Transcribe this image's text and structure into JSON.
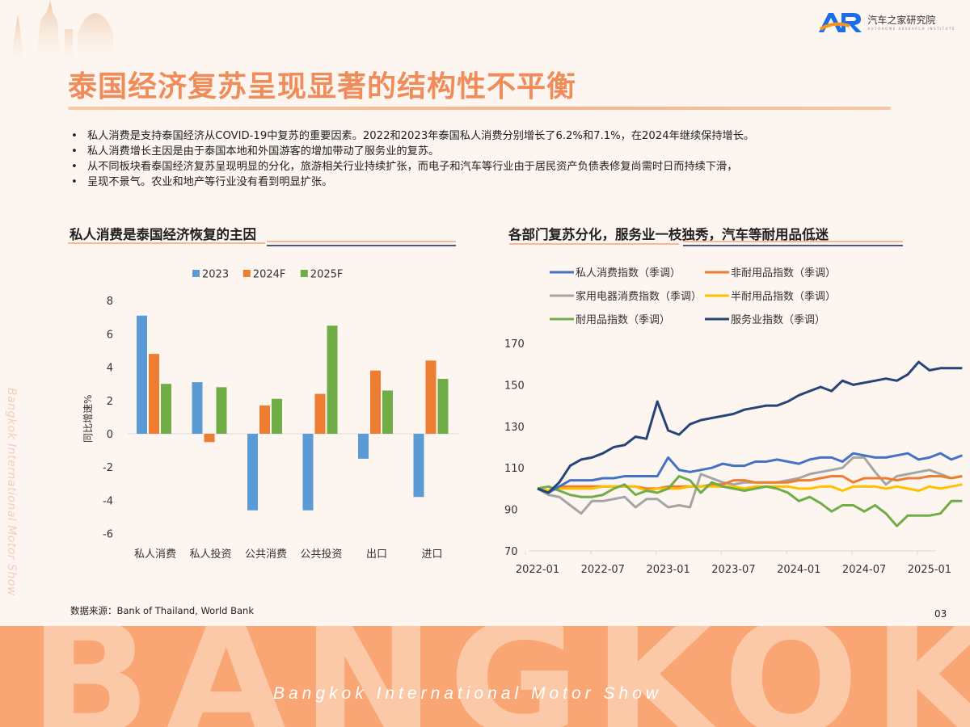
{
  "header": {
    "logo_mark": "AR",
    "logo_name": "汽车之家研究院",
    "logo_subtitle": "AUTOHOME RESEARCH INSTITUTE",
    "title": "泰国经济复苏呈现显著的结构性不平衡"
  },
  "bullets": [
    "私人消费是支持泰国经济从COVID-19中复苏的重要因素。2022和2023年泰国私人消费分别增长了6.2%和7.1%，在2024年继续保持增长。",
    "私人消费增长主因是由于泰国本地和外国游客的增加带动了服务业的复苏。",
    "从不同板块看泰国经济复苏呈现明显的分化，旅游相关行业持续扩张，而电子和汽车等行业由于居民资产负债表修复尚需时日而持续下滑，",
    "呈现不景气。农业和地产等行业没有看到明显扩张。"
  ],
  "left_section": {
    "title": "私人消费是泰国经济恢复的主因"
  },
  "right_section": {
    "title": "各部门复苏分化，服务业一枝独秀，汽车等耐用品低迷"
  },
  "footer": {
    "source": "数据来源：Bank of Thailand, World Bank",
    "page_number": "03",
    "banner_word": "BANGKOK",
    "banner_caption": "Bangkok International Motor Show",
    "side_text": "Bangkok International Motor Show"
  },
  "colors": {
    "title_orange": "#f08c5a",
    "banner_orange": "#f9a574",
    "bar_2023": "#5b9bd5",
    "bar_2024F": "#ed7d31",
    "bar_2025F": "#70ad47",
    "line_private": "#4472c4",
    "line_nondurable": "#ed7d31",
    "line_appliance": "#a5a5a5",
    "line_semidurable": "#ffc000",
    "line_durable": "#70ad47",
    "line_services": "#264478"
  },
  "chart_data": [
    {
      "type": "bar",
      "title": "私人消费是泰国经济恢复的主因",
      "xlabel": "",
      "ylabel": "同比增速%",
      "ylim": [
        -6,
        8
      ],
      "yticks": [
        8,
        6,
        4,
        2,
        0,
        -2,
        -4,
        -6
      ],
      "categories": [
        "私人消费",
        "私人投资",
        "公共消费",
        "公共投资",
        "出口",
        "进口"
      ],
      "legend_position": "top",
      "series": [
        {
          "name": "2023",
          "color": "#5b9bd5",
          "values": [
            7.1,
            3.1,
            -4.6,
            -4.6,
            -1.5,
            -3.8
          ]
        },
        {
          "name": "2024F",
          "color": "#ed7d31",
          "values": [
            4.8,
            -0.5,
            1.7,
            2.4,
            3.8,
            4.4
          ]
        },
        {
          "name": "2025F",
          "color": "#70ad47",
          "values": [
            3.0,
            2.8,
            2.1,
            6.5,
            2.6,
            3.3
          ]
        }
      ]
    },
    {
      "type": "line",
      "title": "各部门复苏分化，服务业一枝独秀，汽车等耐用品低迷",
      "xlabel": "",
      "ylabel": "",
      "ylim": [
        70,
        170
      ],
      "yticks": [
        170,
        150,
        130,
        110,
        90,
        70
      ],
      "xticks": [
        "2022-01",
        "2022-07",
        "2023-01",
        "2023-07",
        "2024-01",
        "2024-07",
        "2025-01"
      ],
      "legend_position": "top",
      "x_start": "2022-01",
      "x_freq": "monthly",
      "series": [
        {
          "name": "私人消费指数（季调）",
          "color": "#4472c4",
          "values": [
            100,
            98,
            101,
            104,
            104,
            104,
            105,
            105,
            106,
            106,
            106,
            106,
            115,
            109,
            108,
            109,
            110,
            112,
            111,
            111,
            113,
            113,
            114,
            113,
            112,
            114,
            115,
            115,
            113,
            117,
            116,
            115,
            115,
            116,
            117,
            114,
            115,
            117,
            114,
            116
          ]
        },
        {
          "name": "非耐用品指数（季调）",
          "color": "#ed7d31",
          "values": [
            100,
            99,
            101,
            101,
            101,
            101,
            101,
            101,
            101,
            101,
            100,
            100,
            101,
            101,
            101,
            101,
            102,
            102,
            104,
            104,
            103,
            103,
            103,
            103,
            104,
            104,
            105,
            106,
            106,
            103,
            105,
            105,
            105,
            104,
            105,
            105,
            106,
            106,
            105,
            106
          ]
        },
        {
          "name": "家用电器消费指数（季调）",
          "color": "#a5a5a5",
          "values": [
            100,
            97,
            96,
            92,
            88,
            94,
            94,
            95,
            96,
            91,
            95,
            95,
            91,
            92,
            91,
            107,
            105,
            103,
            102,
            103,
            103,
            103,
            103,
            104,
            105,
            107,
            108,
            109,
            110,
            115,
            115,
            108,
            102,
            106,
            107,
            108,
            109,
            107,
            105,
            106
          ]
        },
        {
          "name": "半耐用品指数（季调）",
          "color": "#ffc000",
          "values": [
            100,
            99,
            100,
            100,
            100,
            100,
            101,
            101,
            101,
            101,
            99,
            100,
            100,
            100,
            101,
            101,
            101,
            101,
            101,
            100,
            101,
            101,
            101,
            101,
            100,
            100,
            101,
            101,
            99,
            101,
            101,
            101,
            100,
            101,
            100,
            99,
            101,
            100,
            101,
            102
          ]
        },
        {
          "name": "耐用品指数（季调）",
          "color": "#70ad47",
          "values": [
            100,
            101,
            99,
            97,
            96,
            96,
            97,
            100,
            102,
            97,
            99,
            98,
            100,
            106,
            104,
            98,
            103,
            101,
            100,
            99,
            100,
            101,
            100,
            98,
            94,
            96,
            93,
            89,
            92,
            92,
            89,
            92,
            88,
            82,
            87,
            87,
            87,
            88,
            94,
            94
          ]
        },
        {
          "name": "服务业指数（季调）",
          "color": "#264478",
          "values": [
            100,
            98,
            103,
            111,
            114,
            115,
            117,
            120,
            121,
            125,
            124,
            142,
            128,
            126,
            131,
            133,
            134,
            135,
            136,
            138,
            139,
            140,
            140,
            142,
            145,
            147,
            149,
            147,
            152,
            150,
            151,
            152,
            153,
            152,
            155,
            161,
            157,
            158,
            158,
            158
          ]
        }
      ]
    }
  ]
}
